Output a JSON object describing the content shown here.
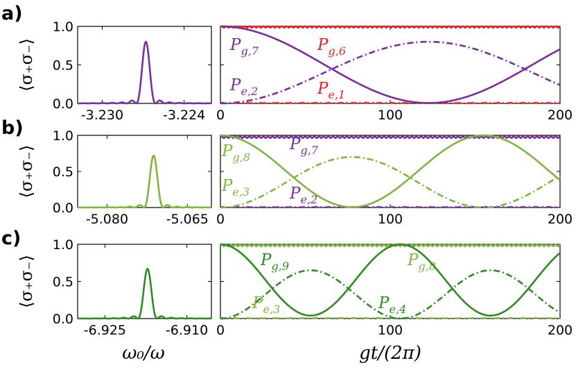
{
  "panels": [
    {
      "letter": "a)",
      "left": {
        "ylabel": "⟨σ₊σ₋⟩",
        "xticks": [
          {
            "v": -3.23,
            "label": "-3.230"
          },
          {
            "v": -3.224,
            "label": "-3.224"
          }
        ],
        "xlim": [
          -3.2318,
          -3.222
        ],
        "center": -3.2268,
        "peak": 0.8,
        "color": "#7B2D9C"
      },
      "right": {
        "curves": [
          {
            "name": "P_{g,6}",
            "label_main": "P",
            "label_sub": "g,6",
            "color": "#EE1C25",
            "style": "solid",
            "kind": "flat",
            "level": 0.995
          },
          {
            "name": "P_{e,1}",
            "label_main": "P",
            "label_sub": "e,1",
            "color": "#EE1C25",
            "style": "dashdot",
            "kind": "flat",
            "level": 0.005
          },
          {
            "name": "P_{g,7}",
            "label_main": "P",
            "label_sub": "g,7",
            "color": "#7B2D9C",
            "style": "solid",
            "kind": "pg",
            "amp": 1.0,
            "period": 245
          },
          {
            "name": "P_{e,2}",
            "label_main": "P",
            "label_sub": "e,2",
            "color": "#7B2D9C",
            "style": "dashdot",
            "kind": "pe",
            "amp": 0.8,
            "period": 245
          }
        ]
      }
    },
    {
      "letter": "b)",
      "left": {
        "ylabel": "⟨σ₊σ₋⟩",
        "xticks": [
          {
            "v": -5.08,
            "label": "-5.080"
          },
          {
            "v": -5.065,
            "label": "-5.065"
          }
        ],
        "xlim": [
          -5.0855,
          -5.0605
        ],
        "center": -5.0713,
        "peak": 0.72,
        "color": "#7DB73B"
      },
      "right": {
        "curves": [
          {
            "name": "P_{g,7}",
            "label_main": "P",
            "label_sub": "g,7",
            "color": "#7B2D9C",
            "style": "solid",
            "kind": "flat",
            "level": 0.975
          },
          {
            "name": "P_{e,2}",
            "label_main": "P",
            "label_sub": "e,2",
            "color": "#7B2D9C",
            "style": "dashdot",
            "kind": "flat",
            "level": 0.005
          },
          {
            "name": "P_{g,8}",
            "label_main": "P",
            "label_sub": "g,8",
            "color": "#7DB73B",
            "style": "solid",
            "kind": "pg",
            "amp": 1.0,
            "period": 155
          },
          {
            "name": "P_{e,3}",
            "label_main": "P",
            "label_sub": "e,3",
            "color": "#7DB73B",
            "style": "dashdot",
            "kind": "pe",
            "amp": 0.7,
            "period": 155
          }
        ]
      }
    },
    {
      "letter": "c)",
      "left": {
        "ylabel": "⟨σ₊σ₋⟩",
        "xticks": [
          {
            "v": -6.925,
            "label": "-6.925"
          },
          {
            "v": -6.91,
            "label": "-6.910"
          }
        ],
        "xlim": [
          -6.93,
          -6.9055
        ],
        "center": -6.9172,
        "peak": 0.67,
        "color": "#2E8B22"
      },
      "right": {
        "curves": [
          {
            "name": "P_{g,8}",
            "label_main": "P",
            "label_sub": "g,8",
            "color": "#7DB73B",
            "style": "solid",
            "kind": "flat",
            "level": 0.985
          },
          {
            "name": "P_{e,3}",
            "label_main": "P",
            "label_sub": "e,3",
            "color": "#7DB73B",
            "style": "dashdot",
            "kind": "flat",
            "level": 0.005
          },
          {
            "name": "P_{g,9}",
            "label_main": "P",
            "label_sub": "g,9",
            "color": "#2E8B22",
            "style": "solid",
            "kind": "pg",
            "amp": 0.96,
            "period": 106
          },
          {
            "name": "P_{e,4}",
            "label_main": "P",
            "label_sub": "e,4",
            "color": "#2E8B22",
            "style": "dashdot",
            "kind": "pe",
            "amp": 0.65,
            "period": 106
          }
        ]
      }
    }
  ],
  "yticks": [
    {
      "v": 0.0,
      "label": "0.0"
    },
    {
      "v": 0.5,
      "label": "0.5"
    },
    {
      "v": 1.0,
      "label": "1.0"
    }
  ],
  "right_xticks": [
    {
      "v": 0,
      "label": "0"
    },
    {
      "v": 100,
      "label": "100"
    },
    {
      "v": 200,
      "label": "200"
    }
  ],
  "left_xlabel": "ω₀/ω",
  "right_xlabel": "gt/(2π)",
  "chart_data": [
    {
      "type": "line",
      "panel": "a-left",
      "title": "",
      "xlabel": "ω₀/ω",
      "ylabel": "⟨σ₊σ₋⟩",
      "ylim": [
        0,
        1.0
      ],
      "xlim": [
        -3.2318,
        -3.222
      ],
      "series": [
        {
          "name": "emission spectrum",
          "peak_x": -3.2268,
          "peak_y": 0.8
        }
      ]
    },
    {
      "type": "line",
      "panel": "a-right",
      "xlabel": "gt/(2π)",
      "ylim": [
        0,
        1.0
      ],
      "xlim": [
        0,
        200
      ],
      "series": [
        {
          "name": "P_{g,6}",
          "x": [
            0,
            100,
            200
          ],
          "values": [
            1.0,
            1.0,
            1.0
          ]
        },
        {
          "name": "P_{e,1}",
          "x": [
            0,
            100,
            200
          ],
          "values": [
            0.0,
            0.0,
            0.0
          ]
        },
        {
          "name": "P_{g,7}",
          "x": [
            0,
            60,
            122,
            180,
            200
          ],
          "values": [
            1.0,
            0.49,
            0.0,
            0.45,
            0.65
          ]
        },
        {
          "name": "P_{e,2}",
          "x": [
            0,
            60,
            122,
            180,
            200
          ],
          "values": [
            0.0,
            0.39,
            0.8,
            0.43,
            0.27
          ]
        }
      ]
    },
    {
      "type": "line",
      "panel": "b-left",
      "xlabel": "ω₀/ω",
      "ylabel": "⟨σ₊σ₋⟩",
      "ylim": [
        0,
        1.0
      ],
      "xlim": [
        -5.0855,
        -5.0605
      ],
      "series": [
        {
          "name": "emission spectrum",
          "peak_x": -5.0713,
          "peak_y": 0.72
        }
      ]
    },
    {
      "type": "line",
      "panel": "b-right",
      "xlabel": "gt/(2π)",
      "ylim": [
        0,
        1.0
      ],
      "xlim": [
        0,
        200
      ],
      "series": [
        {
          "name": "P_{g,7}",
          "x": [
            0,
            100,
            200
          ],
          "values": [
            0.97,
            0.97,
            0.97
          ]
        },
        {
          "name": "P_{e,2}",
          "x": [
            0,
            100,
            200
          ],
          "values": [
            0.0,
            0.0,
            0.0
          ]
        },
        {
          "name": "P_{g,8}",
          "x": [
            0,
            77,
            155,
            200
          ],
          "values": [
            1.0,
            0.03,
            1.0,
            0.41
          ]
        },
        {
          "name": "P_{e,3}",
          "x": [
            0,
            77,
            155,
            200
          ],
          "values": [
            0.0,
            0.7,
            0.0,
            0.41
          ]
        }
      ]
    },
    {
      "type": "line",
      "panel": "c-left",
      "xlabel": "ω₀/ω",
      "ylabel": "⟨σ₊σ₋⟩",
      "ylim": [
        0,
        1.0
      ],
      "xlim": [
        -6.93,
        -6.9055
      ],
      "series": [
        {
          "name": "emission spectrum",
          "peak_x": -6.9172,
          "peak_y": 0.67
        }
      ]
    },
    {
      "type": "line",
      "panel": "c-right",
      "xlabel": "gt/(2π)",
      "ylim": [
        0,
        1.0
      ],
      "xlim": [
        0,
        200
      ],
      "series": [
        {
          "name": "P_{g,8}",
          "x": [
            0,
            100,
            200
          ],
          "values": [
            0.98,
            0.98,
            0.98
          ]
        },
        {
          "name": "P_{e,3}",
          "x": [
            0,
            100,
            200
          ],
          "values": [
            0.0,
            0.0,
            0.0
          ]
        },
        {
          "name": "P_{g,9}",
          "x": [
            0,
            53,
            106,
            159,
            200
          ],
          "values": [
            1.0,
            0.04,
            1.0,
            0.04,
            0.92
          ]
        },
        {
          "name": "P_{e,4}",
          "x": [
            0,
            53,
            106,
            159,
            200
          ],
          "values": [
            0.0,
            0.65,
            0.0,
            0.65,
            0.12
          ]
        }
      ]
    }
  ]
}
